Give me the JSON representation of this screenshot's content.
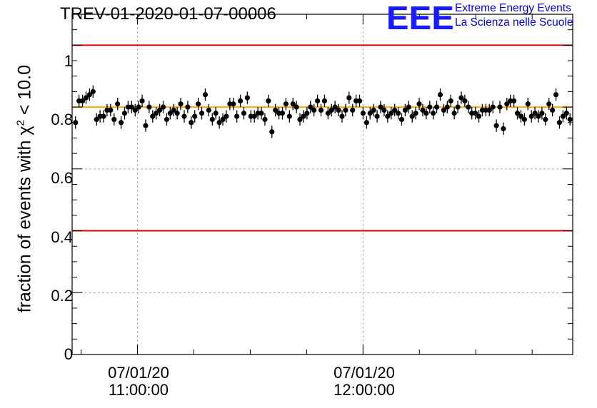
{
  "header": {
    "title": "TREV-01-2020-01-07-00006",
    "logo_mark": "EEE",
    "logo_line1": "Extreme Energy Events",
    "logo_line2": "La Scienza nelle Scuole"
  },
  "colors": {
    "reference_line": "#dd0000",
    "mean_line": "#ffaa00",
    "points": "#000000",
    "logo": "#1a1aff"
  },
  "chart_data": {
    "type": "scatter",
    "title": "TREV-01-2020-01-07-00006",
    "ylabel_prefix": "fraction of events with ",
    "ylabel_chi": "χ",
    "ylabel_exp": "2",
    "ylabel_suffix": " < 10.0",
    "ylim": [
      0,
      1.1
    ],
    "yticks": [
      "0",
      "0.2",
      "0.4",
      "0.6",
      "0.8",
      "1"
    ],
    "ytick_values": [
      0,
      0.2,
      0.4,
      0.6,
      0.8,
      1.0
    ],
    "xlim_hours": [
      10.71,
      12.93
    ],
    "xticks": [
      {
        "date": "07/01/20",
        "time": "11:00:00",
        "hour": 11.0
      },
      {
        "date": "07/01/20",
        "time": "12:00:00",
        "hour": 12.0
      }
    ],
    "grid": true,
    "reference_lines": [
      1.0,
      0.4
    ],
    "mean_line": 0.8,
    "error_bar": 0.02,
    "y_values": [
      0.75,
      0.82,
      0.82,
      0.83,
      0.84,
      0.85,
      0.76,
      0.77,
      0.77,
      0.79,
      0.79,
      0.76,
      0.81,
      0.75,
      0.78,
      0.8,
      0.8,
      0.79,
      0.8,
      0.82,
      0.74,
      0.8,
      0.77,
      0.78,
      0.79,
      0.8,
      0.76,
      0.78,
      0.79,
      0.78,
      0.81,
      0.77,
      0.8,
      0.75,
      0.77,
      0.81,
      0.78,
      0.84,
      0.79,
      0.76,
      0.78,
      0.75,
      0.76,
      0.77,
      0.81,
      0.81,
      0.77,
      0.82,
      0.78,
      0.83,
      0.77,
      0.77,
      0.78,
      0.78,
      0.76,
      0.82,
      0.72,
      0.79,
      0.78,
      0.78,
      0.81,
      0.77,
      0.81,
      0.8,
      0.76,
      0.77,
      0.78,
      0.8,
      0.79,
      0.82,
      0.79,
      0.82,
      0.78,
      0.79,
      0.8,
      0.79,
      0.77,
      0.79,
      0.83,
      0.79,
      0.82,
      0.82,
      0.78,
      0.75,
      0.78,
      0.79,
      0.77,
      0.8,
      0.79,
      0.77,
      0.78,
      0.79,
      0.78,
      0.76,
      0.79,
      0.8,
      0.77,
      0.78,
      0.81,
      0.79,
      0.78,
      0.8,
      0.78,
      0.8,
      0.84,
      0.79,
      0.8,
      0.82,
      0.78,
      0.8,
      0.83,
      0.82,
      0.8,
      0.78,
      0.78,
      0.77,
      0.79,
      0.79,
      0.79,
      0.8,
      0.74,
      0.8,
      0.73,
      0.81,
      0.82,
      0.82,
      0.78,
      0.77,
      0.76,
      0.81,
      0.77,
      0.78,
      0.77,
      0.78,
      0.76,
      0.81,
      0.79,
      0.84,
      0.75,
      0.77,
      0.78,
      0.76
    ]
  }
}
